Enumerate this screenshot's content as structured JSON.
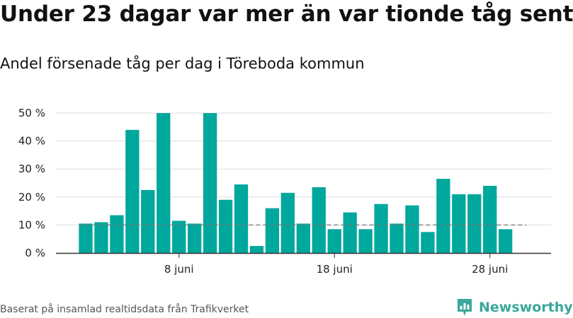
{
  "title": "Under 23 dagar var mer än var tionde tåg sent",
  "subtitle": "Andel försenade tåg per dag i Töreboda kommun",
  "source": "Baserat på insamlad realtidsdata från Trafikverket",
  "brand": {
    "name": "Newsworthy",
    "icon": "bar-chart-logo-icon"
  },
  "colors": {
    "bar": "#00A79D",
    "reference_line": "#777777",
    "grid": "#dddddd",
    "axis": "#333333",
    "brand": "#3aa79a"
  },
  "chart_data": {
    "type": "bar",
    "title": "Under 23 dagar var mer än var tionde tåg sent",
    "subtitle": "Andel försenade tåg per dag i Töreboda kommun",
    "xlabel": "",
    "ylabel": "",
    "categories": [
      "2 juni",
      "3 juni",
      "4 juni",
      "5 juni",
      "6 juni",
      "7 juni",
      "8 juni",
      "9 juni",
      "10 juni",
      "11 juni",
      "12 juni",
      "13 juni",
      "14 juni",
      "15 juni",
      "16 juni",
      "17 juni",
      "18 juni",
      "19 juni",
      "20 juni",
      "21 juni",
      "22 juni",
      "23 juni",
      "24 juni",
      "25 juni",
      "26 juni",
      "27 juni",
      "28 juni",
      "29 juni"
    ],
    "values": [
      10.5,
      11,
      13.5,
      44,
      22.5,
      50,
      11.5,
      10.5,
      50,
      19,
      24.5,
      2.5,
      16,
      21.5,
      10.5,
      23.5,
      8.5,
      14.5,
      8.5,
      17.5,
      10.5,
      17,
      7.5,
      26.5,
      21,
      21,
      24,
      8.5
    ],
    "reference_value": 10,
    "ylim": [
      0,
      50
    ],
    "yticks": [
      0,
      10,
      20,
      30,
      40,
      50
    ],
    "ytick_labels": [
      "0 %",
      "10 %",
      "20 %",
      "30 %",
      "40 %",
      "50 %"
    ],
    "xtick_labels": [
      {
        "category": "8 juni",
        "label": "8 juni"
      },
      {
        "category": "18 juni",
        "label": "18 juni"
      },
      {
        "category": "28 juni",
        "label": "28 juni"
      }
    ],
    "grid": true,
    "legend": "none"
  }
}
